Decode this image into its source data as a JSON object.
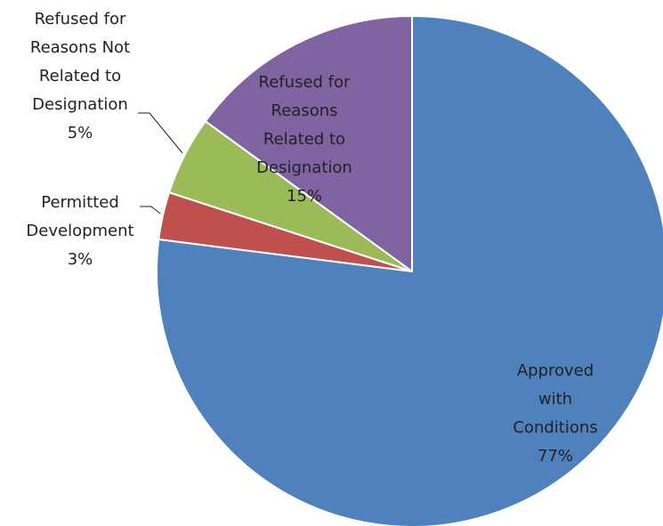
{
  "chart_data": {
    "type": "pie",
    "categories": [
      "Approved with\nConditions",
      "Permitted\nDevelopment",
      "Refused for\nReasons Not\nRelated to\nDesignation",
      "Refused for\nReasons\nRelated to\nDesignation"
    ],
    "values": [
      77,
      3,
      5,
      15
    ],
    "value_labels": [
      "77%",
      "3%",
      "5%",
      "15%"
    ],
    "colors": [
      "#4f81bd",
      "#c0504d",
      "#9bbb59",
      "#8064a2"
    ]
  }
}
